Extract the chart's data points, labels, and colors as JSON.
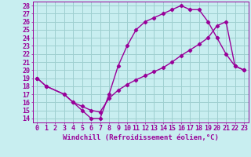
{
  "xlabel": "Windchill (Refroidissement éolien,°C)",
  "xlim": [
    -0.5,
    23.5
  ],
  "ylim": [
    13.5,
    28.5
  ],
  "xticks": [
    0,
    1,
    2,
    3,
    4,
    5,
    6,
    7,
    8,
    9,
    10,
    11,
    12,
    13,
    14,
    15,
    16,
    17,
    18,
    19,
    20,
    21,
    22,
    23
  ],
  "yticks": [
    14,
    15,
    16,
    17,
    18,
    19,
    20,
    21,
    22,
    23,
    24,
    25,
    26,
    27,
    28
  ],
  "line1_x": [
    0,
    1,
    3,
    4,
    5,
    6,
    7,
    8,
    9,
    10,
    11,
    12,
    13,
    14,
    15,
    16,
    17,
    18,
    19,
    20,
    21,
    22,
    23
  ],
  "line1_y": [
    19,
    18,
    17,
    16,
    15,
    14,
    14,
    17,
    20.5,
    23,
    25,
    26,
    26.5,
    27,
    27.5,
    28,
    27.5,
    27.5,
    26,
    24,
    22,
    20.5,
    20
  ],
  "line2_x": [
    0,
    1,
    3,
    4,
    5,
    6,
    7,
    8,
    9,
    10,
    11,
    12,
    13,
    14,
    15,
    16,
    17,
    18,
    19,
    20,
    21,
    22,
    23
  ],
  "line2_y": [
    19,
    18,
    17,
    16,
    15.5,
    15,
    14.8,
    16.5,
    17.5,
    18.2,
    18.8,
    19.3,
    19.8,
    20.3,
    21.0,
    21.8,
    22.5,
    23.2,
    24.0,
    25.5,
    26.0,
    20.5,
    20
  ],
  "color": "#990099",
  "bg_color": "#c8eef0",
  "grid_color": "#9ecfcf",
  "marker": "D",
  "marker_size": 2.2,
  "linewidth": 1.0,
  "xlabel_fontsize": 6.5,
  "tick_fontsize": 6.0
}
